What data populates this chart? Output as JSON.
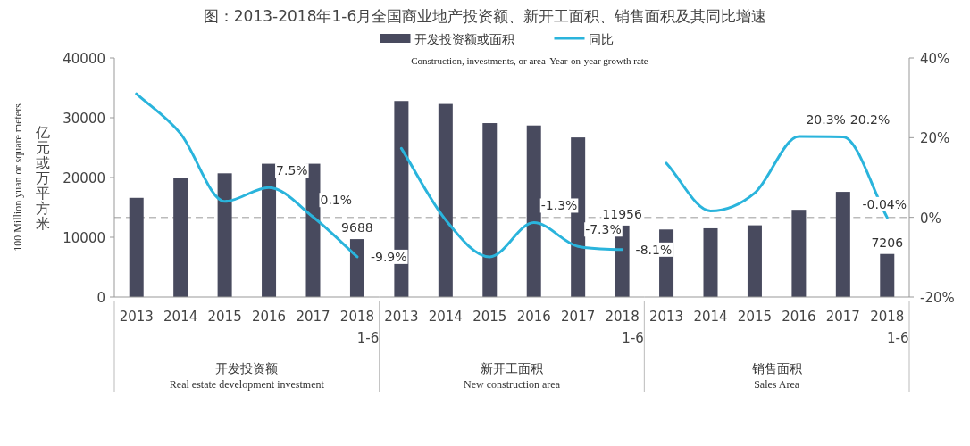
{
  "chart_data": [
    {
      "type": "bar",
      "title": "图：2013-2018年1-6月全国商业地产投资额、新开工面积、销售面积及其同比增速",
      "xlabel": "开发投资额\nReal estate development investment",
      "ylabel": "100 Million yuan or square meters\n亿元或万平方米",
      "legend": "top",
      "tick_labels": "xy",
      "categories": [
        "2013",
        "2014",
        "2015",
        "2016",
        "2017",
        "2018 1-6"
      ],
      "ylim": [
        0,
        40000
      ],
      "yticks": [
        0,
        10000,
        20000,
        30000,
        40000
      ],
      "y2lim": [
        -20,
        40
      ],
      "ref_lines": [
        {
          "axis": "y2",
          "value": 0,
          "color": "#bbbbbb",
          "line_style": "dashed"
        }
      ],
      "series": [
        {
          "name": "开发投资额或面积\nConstruction, investments, or area",
          "type": "bar",
          "color": "#484a5e",
          "values": [
            16600,
            19900,
            20700,
            22300,
            22300,
            9688
          ],
          "value_labels": [
            null,
            null,
            null,
            null,
            null,
            "9688"
          ]
        },
        {
          "name": "同比\nYear-on-year growth rate",
          "type": "line",
          "axis": "y2",
          "color": "#2ab4dc",
          "values": [
            31,
            21,
            4,
            7.5,
            0.1,
            -9.9
          ],
          "value_labels": [
            null,
            null,
            null,
            "7.5%",
            "0.1%",
            "-9.9%"
          ]
        }
      ]
    },
    {
      "type": "bar",
      "xlabel": "新开工面积\nNew construction area",
      "tick_labels": "x",
      "categories": [
        "2013",
        "2014",
        "2015",
        "2016",
        "2017",
        "2018 1-6"
      ],
      "ylim": [
        0,
        40000
      ],
      "y2lim": [
        -20,
        40
      ],
      "ref_lines": [
        {
          "axis": "y2",
          "value": 0,
          "color": "#bbbbbb",
          "line_style": "dashed"
        }
      ],
      "series": [
        {
          "type": "bar",
          "color": "#484a5e",
          "values": [
            32800,
            32300,
            29100,
            28700,
            26700,
            11956
          ],
          "value_labels": [
            null,
            null,
            null,
            null,
            null,
            "11956"
          ]
        },
        {
          "type": "line",
          "axis": "y2",
          "color": "#2ab4dc",
          "values": [
            17.3,
            -0.6,
            -9.9,
            -1.3,
            -7.3,
            -8.1
          ],
          "value_labels": [
            null,
            null,
            null,
            "-1.3%",
            "-7.3%",
            "-8.1%"
          ]
        }
      ]
    },
    {
      "type": "bar",
      "xlabel": "销售面积\nSales Area",
      "tick_labels": "xy2",
      "categories": [
        "2013",
        "2014",
        "2015",
        "2016",
        "2017",
        "2018 1-6"
      ],
      "ylim": [
        0,
        40000
      ],
      "y2lim": [
        -20,
        40
      ],
      "y2ticks": [
        {
          "value": -20,
          "label": "-20%"
        },
        {
          "value": 0,
          "label": "0%"
        },
        {
          "value": 20,
          "label": "20%"
        },
        {
          "value": 40,
          "label": "40%"
        }
      ],
      "ref_lines": [
        {
          "axis": "y2",
          "value": 0,
          "color": "#bbbbbb",
          "line_style": "dashed"
        }
      ],
      "series": [
        {
          "type": "bar",
          "color": "#484a5e",
          "values": [
            11300,
            11500,
            12000,
            14600,
            17600,
            7206
          ],
          "value_labels": [
            null,
            null,
            null,
            null,
            null,
            "7206"
          ]
        },
        {
          "type": "line",
          "axis": "y2",
          "color": "#2ab4dc",
          "values": [
            13.6,
            1.6,
            6.1,
            20.3,
            20.2,
            -0.04
          ],
          "value_labels": [
            null,
            null,
            null,
            "20.3%",
            "20.2%",
            "-0.04%"
          ]
        }
      ]
    }
  ]
}
